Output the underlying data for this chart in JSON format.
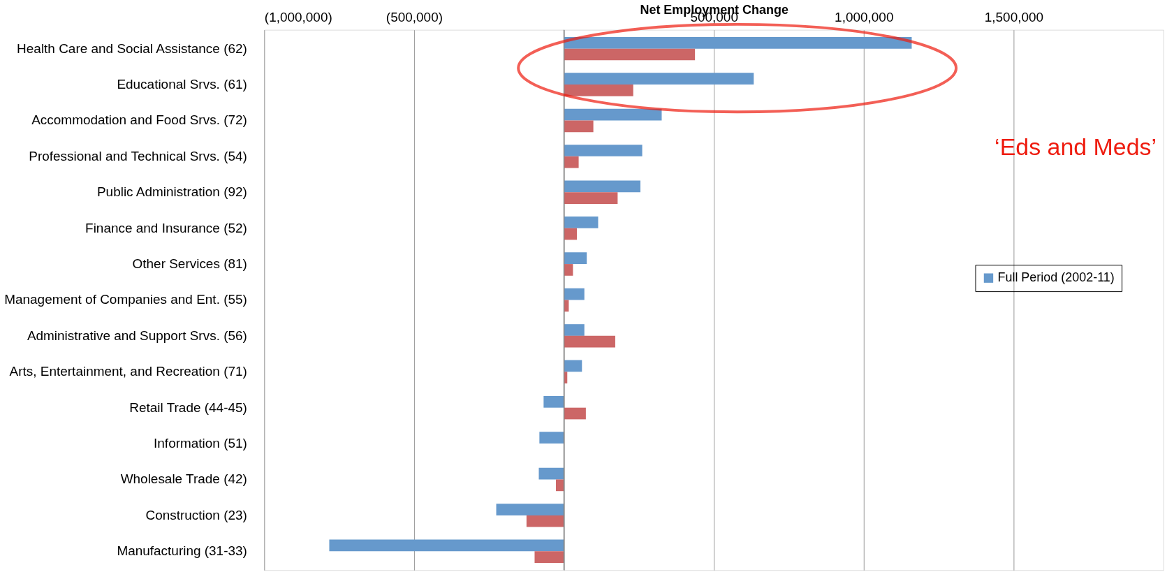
{
  "chart_data": {
    "type": "bar",
    "orientation": "horizontal",
    "xlabel": "Net Employment Change",
    "categories": [
      "Health Care and Social Assistance (62)",
      "Educational Srvs. (61)",
      "Accommodation and Food Srvs. (72)",
      "Professional and Technical Srvs. (54)",
      "Public Administration (92)",
      "Finance and Insurance (52)",
      "Other Services (81)",
      "Management of Companies and Ent. (55)",
      "Administrative and Support Srvs. (56)",
      "Arts, Entertainment, and Recreation (71)",
      "Retail Trade (44-45)",
      "Information (51)",
      "Wholesale Trade (42)",
      "Construction (23)",
      "Manufacturing (31-33)"
    ],
    "series": [
      {
        "name": "Full Period (2002-11)",
        "color": "#6699cc",
        "values": [
          1160000,
          633000,
          326000,
          261000,
          255000,
          114000,
          76000,
          68000,
          68000,
          60000,
          -68000,
          -82000,
          -84000,
          -226000,
          -783000
        ]
      },
      {
        "color": "#cc6666",
        "values": [
          437000,
          231000,
          98000,
          49000,
          179000,
          43000,
          30000,
          16000,
          171000,
          11000,
          73000,
          null,
          -27000,
          -125000,
          -98000
        ]
      }
    ],
    "xlim": [
      -1000000,
      2000000
    ],
    "xticks": [
      {
        "value": -1000000,
        "label": "(1,000,000)"
      },
      {
        "value": -500000,
        "label": "(500,000)"
      },
      {
        "value": 0,
        "label": null
      },
      {
        "value": 500000,
        "label": "500,000"
      },
      {
        "value": 1000000,
        "label": "1,000,000"
      },
      {
        "value": 1500000,
        "label": "1,500,000"
      }
    ],
    "grid": "x",
    "legend": "right",
    "annotations": [
      "‘Eds and Meds’"
    ]
  }
}
